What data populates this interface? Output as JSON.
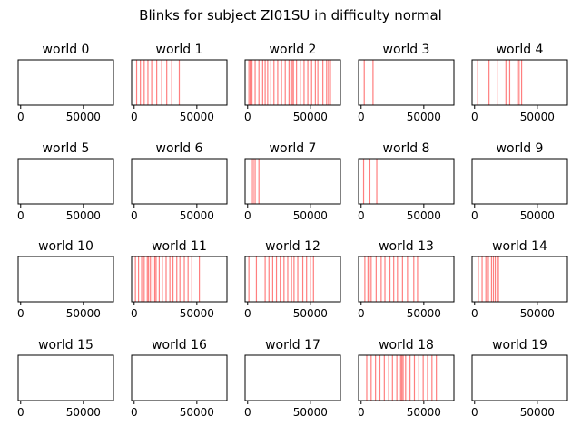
{
  "title": "Blinks for subject ZI01SU in difficulty normal",
  "chart_data": {
    "type": "event-raster",
    "title": "Blinks for subject ZI01SU in difficulty normal",
    "xlim": [
      -2000,
      74000
    ],
    "xticks": [
      0,
      50000
    ],
    "xtick_labels": [
      "0",
      "50000"
    ],
    "yticks": [],
    "line_color": "#ff0000",
    "line_alpha": 0.5,
    "panels": [
      {
        "title": "world 0",
        "events": []
      },
      {
        "title": "world 1",
        "events": [
          2000,
          5000,
          8000,
          11000,
          14000,
          18000,
          22000,
          26000,
          30000,
          36000
        ]
      },
      {
        "title": "world 2",
        "events": [
          1000,
          2000,
          3500,
          6000,
          9000,
          12000,
          14000,
          16000,
          18500,
          21000,
          24000,
          27000,
          30000,
          33000,
          34500,
          35500,
          36500,
          39000,
          42000,
          45000,
          48000,
          51000,
          54000,
          56000,
          60000,
          63000,
          64500,
          66000
        ]
      },
      {
        "title": "world 3",
        "events": [
          2500,
          9500
        ]
      },
      {
        "title": "world 4",
        "events": [
          2500,
          11500,
          18000,
          25000,
          28000,
          34000,
          35500,
          37500
        ]
      },
      {
        "title": "world 5",
        "events": []
      },
      {
        "title": "world 6",
        "events": []
      },
      {
        "title": "world 7",
        "events": [
          3000,
          4500,
          6000,
          9000
        ]
      },
      {
        "title": "world 8",
        "events": [
          2000,
          7000,
          12500
        ]
      },
      {
        "title": "world 9",
        "events": []
      },
      {
        "title": "world 10",
        "events": []
      },
      {
        "title": "world 11",
        "events": [
          1000,
          3500,
          6000,
          8000,
          10500,
          11500,
          13000,
          15000,
          16500,
          17500,
          20000,
          22500,
          25500,
          28500,
          31000,
          34000,
          36500,
          40000,
          43000,
          46000,
          52000
        ]
      },
      {
        "title": "world 12",
        "events": [
          1000,
          7000,
          14000,
          17000,
          20000,
          23000,
          26000,
          29000,
          32000,
          35000,
          37000,
          40000,
          44000,
          47000,
          50000,
          52500
        ]
      },
      {
        "title": "world 13",
        "events": [
          3000,
          5500,
          6500,
          8000,
          12000,
          16000,
          19000,
          23000,
          26000,
          29000,
          33000,
          37000,
          42000,
          45000
        ]
      },
      {
        "title": "world 14",
        "events": [
          3000,
          6000,
          9000,
          11000,
          13500,
          15000,
          16500,
          18000,
          19000
        ]
      },
      {
        "title": "world 15",
        "events": []
      },
      {
        "title": "world 16",
        "events": []
      },
      {
        "title": "world 17",
        "events": []
      },
      {
        "title": "world 18",
        "events": [
          4500,
          8000,
          11500,
          15000,
          18500,
          22000,
          25000,
          28500,
          31500,
          32500,
          33500,
          35500,
          39000,
          42500,
          46000,
          49500,
          53000,
          56500,
          60000
        ]
      },
      {
        "title": "world 19",
        "events": []
      }
    ]
  }
}
